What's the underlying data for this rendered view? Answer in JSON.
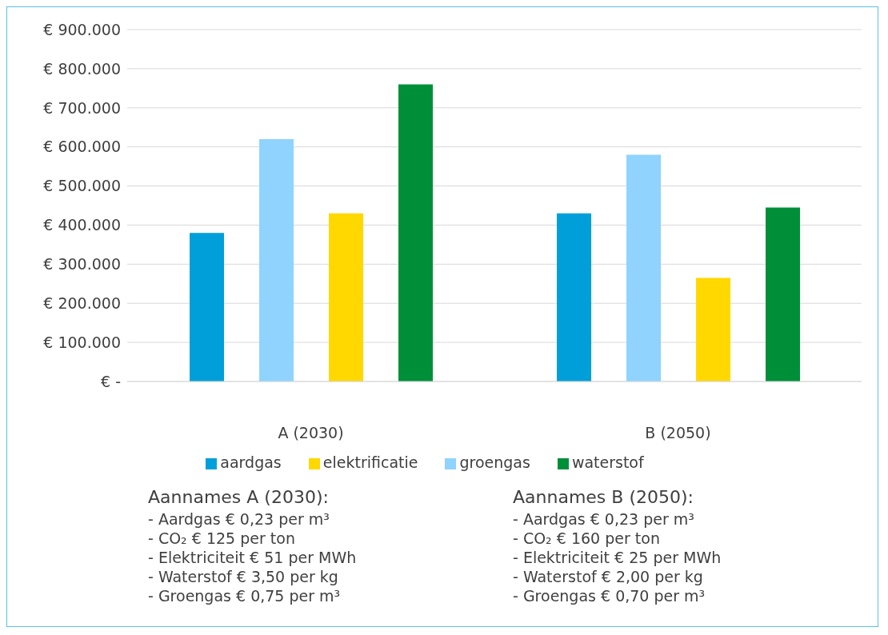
{
  "chart_data": {
    "type": "bar",
    "categories": [
      "A (2030)",
      "B (2050)"
    ],
    "series": [
      {
        "name": "aardgas",
        "color": "#009fda",
        "values": [
          380000,
          430000
        ]
      },
      {
        "name": "groengas",
        "color": "#8fd3fe",
        "values": [
          620000,
          580000
        ]
      },
      {
        "name": "elektrificatie",
        "color": "#ffd800",
        "values": [
          430000,
          265000
        ]
      },
      {
        "name": "waterstof",
        "color": "#008f39",
        "values": [
          760000,
          445000
        ]
      }
    ],
    "ylim": [
      0,
      900000
    ],
    "yticks": [
      {
        "value": 0,
        "label": "€ -"
      },
      {
        "value": 100000,
        "label": "€ 100.000"
      },
      {
        "value": 200000,
        "label": "€ 200.000"
      },
      {
        "value": 300000,
        "label": "€ 300.000"
      },
      {
        "value": 400000,
        "label": "€ 400.000"
      },
      {
        "value": 500000,
        "label": "€ 500.000"
      },
      {
        "value": 600000,
        "label": "€ 600.000"
      },
      {
        "value": 700000,
        "label": "€ 700.000"
      },
      {
        "value": 800000,
        "label": "€ 800.000"
      },
      {
        "value": 900000,
        "label": "€ 900.000"
      }
    ],
    "grid": "y",
    "legend": "bottom",
    "annotations": [
      "Aannames A (2030):",
      "- Aardgas € 0,23 per m³",
      "- CO₂ € 125 per ton",
      "- Elektriciteit € 51 per MWh",
      "- Waterstof € 3,50 per kg",
      "- Groengas € 0,75 per m³",
      "Aannames B (2050):",
      "- Aardgas € 0,23 per m³",
      "- CO₂ € 160 per ton",
      "- Elektriciteit € 25 per MWh",
      "- Waterstof € 2,00 per kg",
      "- Groengas € 0,70 per m³"
    ]
  }
}
